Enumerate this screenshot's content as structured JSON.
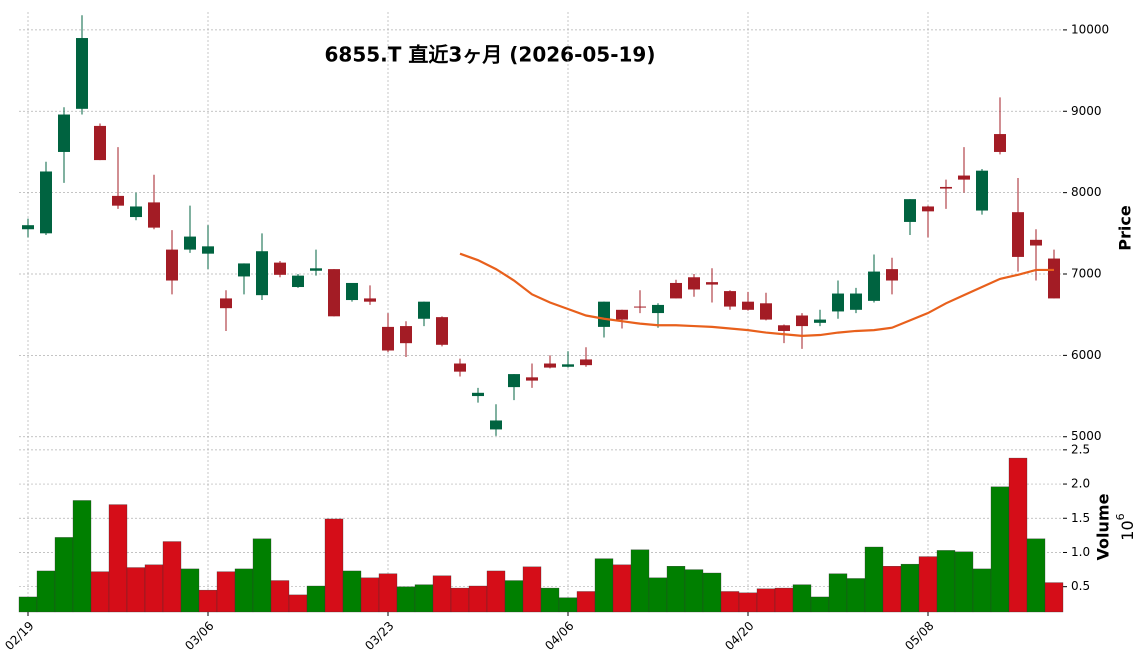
{
  "chart_data": {
    "type": "candlestick",
    "title": "6855.T  直近3ヶ月  (2026-05-19)",
    "categories": [
      "02/19",
      null,
      null,
      null,
      null,
      null,
      null,
      null,
      null,
      null,
      "03/06",
      null,
      null,
      null,
      null,
      null,
      null,
      null,
      null,
      null,
      "03/23",
      null,
      null,
      null,
      null,
      null,
      null,
      null,
      null,
      null,
      "04/06",
      null,
      null,
      null,
      null,
      null,
      null,
      null,
      null,
      null,
      "04/20",
      null,
      null,
      null,
      null,
      null,
      null,
      null,
      null,
      null,
      "05/08",
      null,
      null,
      null,
      null,
      null,
      null,
      null
    ],
    "open": [
      7550,
      7500,
      8500,
      9030,
      8820,
      7960,
      7700,
      7880,
      7300,
      7300,
      7250,
      6700,
      6970,
      6740,
      7140,
      6840,
      7040,
      7060,
      6680,
      6700,
      6350,
      6360,
      6450,
      6470,
      5900,
      5500,
      5090,
      5610,
      5730,
      5900,
      5860,
      5950,
      6350,
      6560,
      6600,
      6520,
      6890,
      6960,
      6900,
      6790,
      6660,
      6640,
      6370,
      6490,
      6400,
      6540,
      6560,
      6670,
      7060,
      7640,
      7830,
      8070,
      8210,
      7780,
      8720,
      7760,
      7420,
      7190
    ],
    "high": [
      7680,
      8380,
      9050,
      10180,
      8850,
      8560,
      8000,
      8220,
      7540,
      7840,
      7600,
      6800,
      7130,
      7500,
      7160,
      7000,
      7300,
      7060,
      6890,
      6860,
      6520,
      6420,
      6660,
      6480,
      5960,
      5600,
      5400,
      5770,
      5900,
      6000,
      6050,
      6100,
      6660,
      6560,
      6800,
      6640,
      6930,
      7000,
      7070,
      6800,
      6780,
      6770,
      6380,
      6520,
      6560,
      6920,
      6830,
      7240,
      7200,
      7920,
      7840,
      8160,
      8560,
      8290,
      9170,
      8180,
      7550,
      7300
    ],
    "low": [
      7450,
      7480,
      8120,
      8960,
      8400,
      7800,
      7660,
      7550,
      6750,
      7260,
      7060,
      6300,
      6750,
      6680,
      6960,
      6830,
      6980,
      6480,
      6660,
      6620,
      6040,
      5980,
      6360,
      6110,
      5740,
      5420,
      5010,
      5450,
      5600,
      5840,
      5850,
      5860,
      6220,
      6330,
      6520,
      6340,
      6700,
      6720,
      6650,
      6560,
      6550,
      6430,
      6150,
      6080,
      6360,
      6450,
      6520,
      6650,
      6750,
      7480,
      7450,
      7800,
      8000,
      7730,
      8470,
      7030,
      6920,
      6700
    ],
    "close": [
      7600,
      8260,
      8960,
      9900,
      8400,
      7840,
      7830,
      7570,
      6920,
      7460,
      7340,
      6580,
      7130,
      7280,
      6990,
      6980,
      7070,
      6480,
      6890,
      6660,
      6060,
      6150,
      6660,
      6130,
      5800,
      5540,
      5200,
      5770,
      5690,
      5850,
      5890,
      5880,
      6660,
      6440,
      6590,
      6620,
      6700,
      6810,
      6870,
      6600,
      6560,
      6440,
      6300,
      6360,
      6440,
      6760,
      6760,
      7030,
      6920,
      7920,
      7770,
      8050,
      8160,
      8270,
      8500,
      7210,
      7350,
      6700
    ],
    "up_color": "#006340",
    "down_color": "#a31c25",
    "ylim": [
      4960,
      10220
    ],
    "yticks": [
      5000,
      6000,
      7000,
      8000,
      9000,
      10000
    ],
    "ylabel": "Price",
    "grid": true,
    "overlay": {
      "type": "line",
      "color": "#e8601c",
      "values": [
        null,
        null,
        null,
        null,
        null,
        null,
        null,
        null,
        null,
        null,
        null,
        null,
        null,
        null,
        null,
        null,
        null,
        null,
        null,
        null,
        null,
        null,
        null,
        null,
        7250,
        7170,
        7060,
        6920,
        6750,
        6650,
        6570,
        6490,
        6450,
        6420,
        6390,
        6370,
        6370,
        6360,
        6350,
        6330,
        6310,
        6280,
        6260,
        6240,
        6250,
        6280,
        6300,
        6310,
        6340,
        6430,
        6520,
        6640,
        6740,
        6840,
        6940,
        6990,
        7050,
        7050
      ]
    },
    "volume": {
      "type": "bar",
      "ylabel": "Volume",
      "offset_base": "10",
      "offset_exponent": "6",
      "up_color": "#007f00",
      "down_color": "#d50d18",
      "values": [
        0.35,
        0.73,
        1.22,
        1.76,
        0.72,
        1.7,
        0.78,
        0.82,
        1.16,
        0.76,
        0.45,
        0.72,
        0.76,
        1.2,
        0.59,
        0.38,
        0.51,
        1.49,
        0.73,
        0.63,
        0.69,
        0.5,
        0.53,
        0.66,
        0.48,
        0.51,
        0.73,
        0.59,
        0.79,
        0.48,
        0.34,
        0.43,
        0.91,
        0.82,
        1.04,
        0.63,
        0.8,
        0.75,
        0.7,
        0.43,
        0.41,
        0.47,
        0.48,
        0.53,
        0.35,
        0.69,
        0.62,
        1.08,
        0.8,
        0.83,
        0.94,
        1.03,
        1.01,
        0.76,
        1.96,
        2.38,
        1.2,
        0.56
      ],
      "ylim": [
        0.13,
        2.6
      ],
      "yticks": [
        0.5,
        {
          "value": 1,
          "label": "1.0"
        },
        1.5,
        {
          "value": 2,
          "label": "2.0"
        },
        2.5
      ]
    }
  }
}
